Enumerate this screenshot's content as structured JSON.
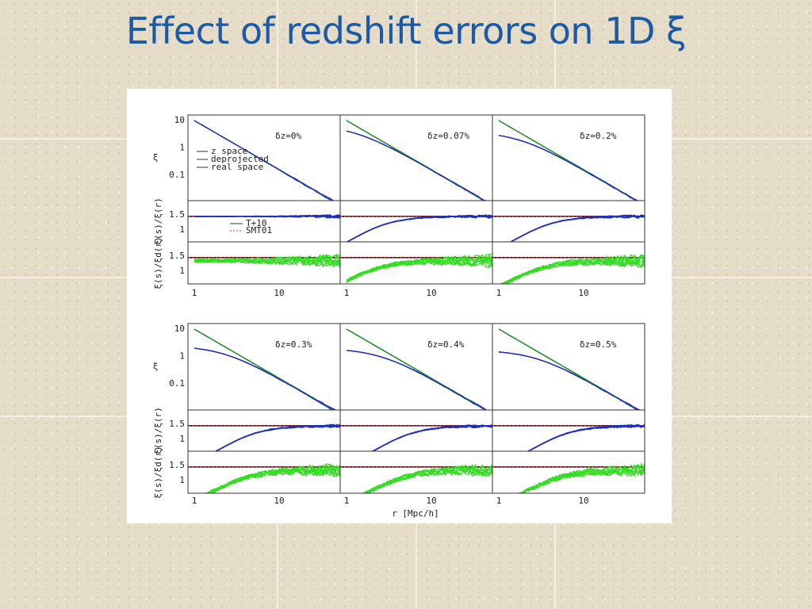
{
  "title": "Effect of redshift errors on 1D ξ",
  "figure": {
    "panels": [
      {
        "label": "δz=0%"
      },
      {
        "label": "δz=0.07%"
      },
      {
        "label": "δz=0.2%"
      },
      {
        "label": "δz=0.3%"
      },
      {
        "label": "δz=0.4%"
      },
      {
        "label": "δz=0.5%"
      }
    ],
    "legend": [
      "z space",
      "deprojected",
      "real space"
    ],
    "ratio_legend": [
      "T+10",
      "SMT01"
    ],
    "y_labels": {
      "main": "ξ",
      "ratio1": "ξ(s)/ξ(r)",
      "ratio2": "ξ(s)/ξd(r)"
    },
    "main_yticks": [
      "10",
      "1",
      "0.1"
    ],
    "ratio_yticks": [
      "1.5",
      "1"
    ],
    "xticks": [
      "1",
      "10"
    ],
    "x_label": "r [Mpc/h]"
  }
}
